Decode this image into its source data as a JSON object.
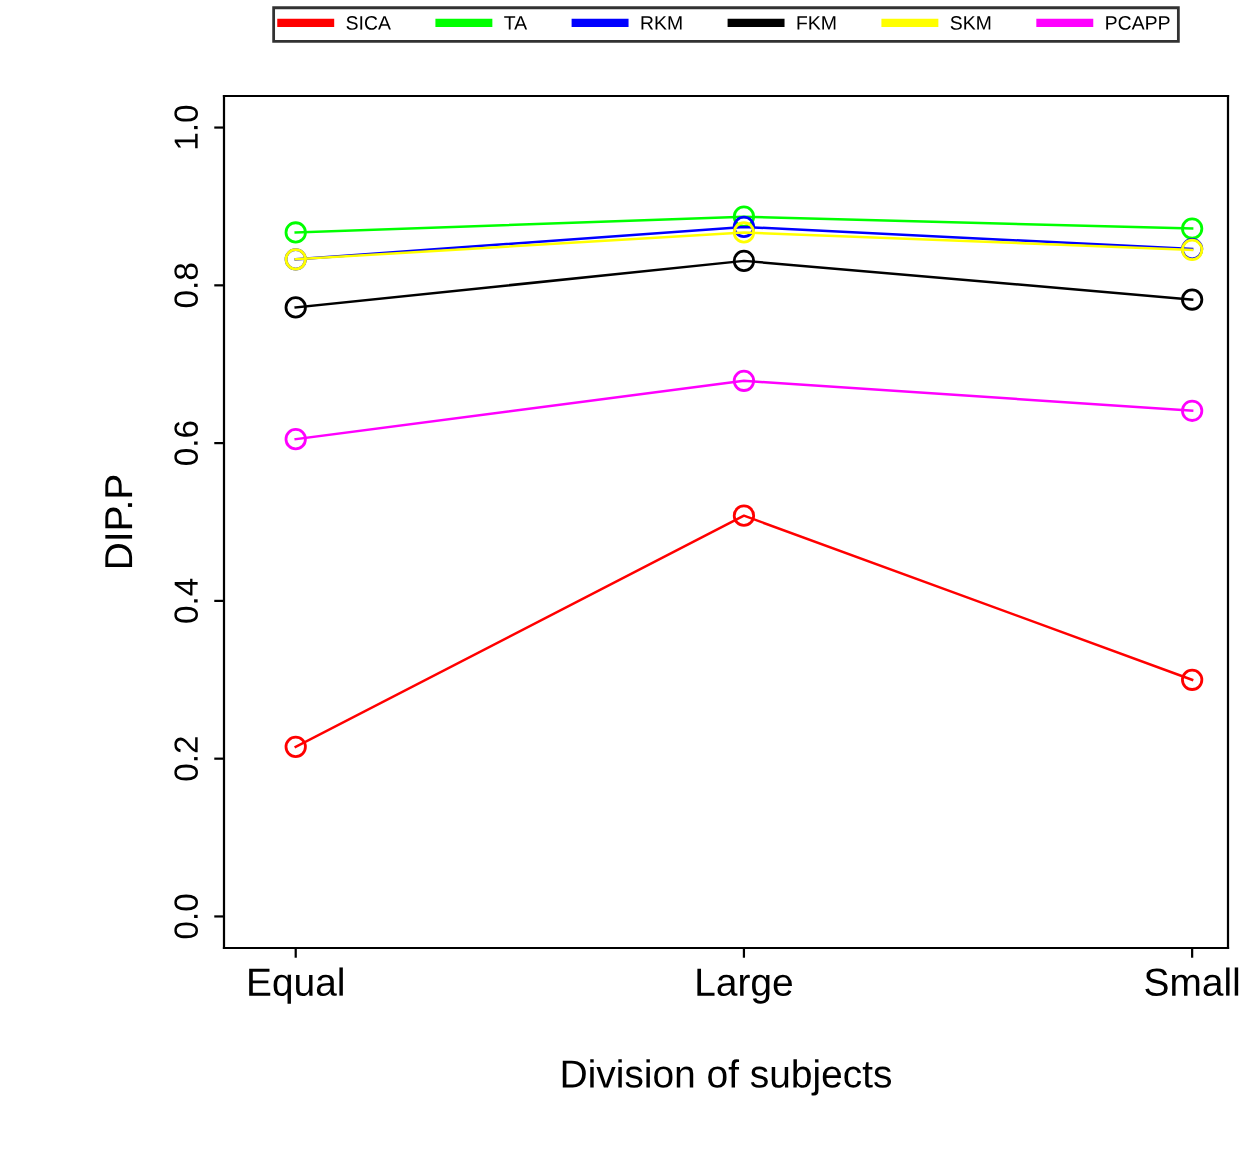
{
  "chart_data": {
    "type": "line",
    "xlabel": "Division of subjects",
    "ylabel": "DIP.P",
    "categories": [
      "Equal",
      "Large",
      "Small"
    ],
    "series": [
      {
        "name": "SICA",
        "color": "#ff0000",
        "values": [
          0.215,
          0.508,
          0.3
        ]
      },
      {
        "name": "TA",
        "color": "#00ff00",
        "values": [
          0.867,
          0.887,
          0.872
        ]
      },
      {
        "name": "RKM",
        "color": "#0000ff",
        "values": [
          0.833,
          0.874,
          0.846
        ]
      },
      {
        "name": "FKM",
        "color": "#000000",
        "values": [
          0.772,
          0.831,
          0.782
        ]
      },
      {
        "name": "SKM",
        "color": "#ffff00",
        "values": [
          0.833,
          0.867,
          0.845
        ]
      },
      {
        "name": "PCAPP",
        "color": "#ff00ff",
        "values": [
          0.605,
          0.679,
          0.641
        ]
      }
    ],
    "ylim": [
      -0.04,
      1.04
    ],
    "yticks": [
      {
        "value": 0,
        "label": "0.0"
      },
      {
        "value": 0.2,
        "label": "0.2"
      },
      {
        "value": 0.4,
        "label": "0.4"
      },
      {
        "value": 0.6,
        "label": "0.6"
      },
      {
        "value": 0.8,
        "label": "0.8"
      },
      {
        "value": 1,
        "label": "1.0"
      }
    ],
    "marker": "circle",
    "line_style": "solid",
    "grid": false,
    "legend": "top"
  }
}
